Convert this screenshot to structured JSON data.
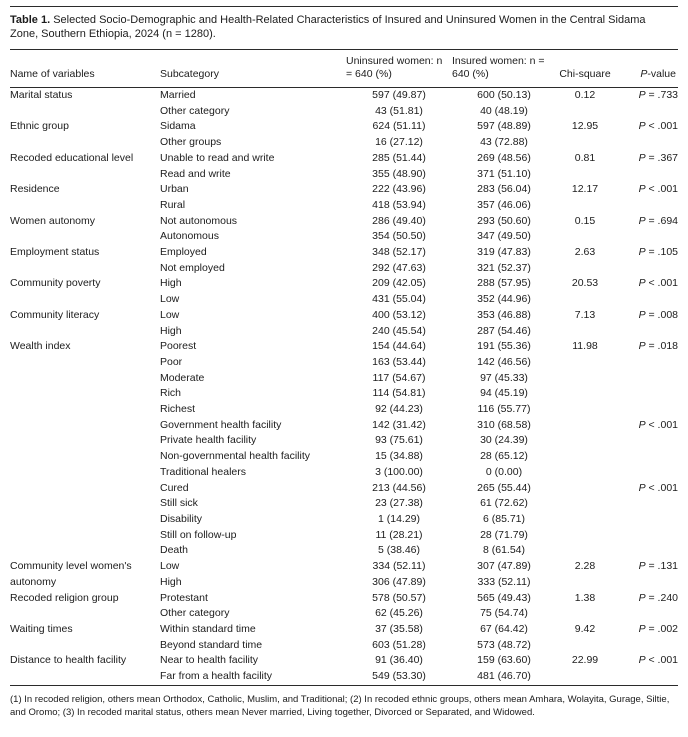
{
  "title": {
    "label": "Table 1.",
    "text": "  Selected Socio-Demographic and Health-Related Characteristics of Insured and Uninsured Women in the Central Sidama Zone, Southern Ethiopia, 2024 (n = 1280)."
  },
  "table": {
    "columns": [
      "Name of variables",
      "Subcategory",
      "Uninsured women: n = 640 (%)",
      "Insured women: n = 640 (%)",
      "Chi-square",
      "P-value"
    ],
    "rows": [
      {
        "variable": "Marital status",
        "subcategory": "Married",
        "uninsured": "597 (49.87)",
        "insured": "600 (50.13)",
        "chi": "0.12",
        "p": "P = .733"
      },
      {
        "variable": "",
        "subcategory": "Other category",
        "uninsured": "43 (51.81)",
        "insured": "40 (48.19)",
        "chi": "",
        "p": ""
      },
      {
        "variable": "Ethnic group",
        "subcategory": "Sidama",
        "uninsured": "624 (51.11)",
        "insured": "597 (48.89)",
        "chi": "12.95",
        "p": "P < .001"
      },
      {
        "variable": "",
        "subcategory": "Other groups",
        "uninsured": "16 (27.12)",
        "insured": "43 (72.88)",
        "chi": "",
        "p": ""
      },
      {
        "variable": "Recoded educational level",
        "subcategory": "Unable to read and write",
        "uninsured": "285 (51.44)",
        "insured": "269 (48.56)",
        "chi": "0.81",
        "p": "P = .367"
      },
      {
        "variable": "",
        "subcategory": "Read and write",
        "uninsured": "355 (48.90)",
        "insured": "371 (51.10)",
        "chi": "",
        "p": ""
      },
      {
        "variable": "Residence",
        "subcategory": "Urban",
        "uninsured": "222 (43.96)",
        "insured": "283 (56.04)",
        "chi": "12.17",
        "p": "P < .001"
      },
      {
        "variable": "",
        "subcategory": "Rural",
        "uninsured": "418 (53.94)",
        "insured": "357 (46.06)",
        "chi": "",
        "p": ""
      },
      {
        "variable": "Women autonomy",
        "subcategory": "Not autonomous",
        "uninsured": "286 (49.40)",
        "insured": "293 (50.60)",
        "chi": "0.15",
        "p": "P = .694"
      },
      {
        "variable": "",
        "subcategory": "Autonomous",
        "uninsured": "354 (50.50)",
        "insured": "347 (49.50)",
        "chi": "",
        "p": ""
      },
      {
        "variable": "Employment status",
        "subcategory": "Employed",
        "uninsured": "348 (52.17)",
        "insured": "319 (47.83)",
        "chi": "2.63",
        "p": "P = .105"
      },
      {
        "variable": "",
        "subcategory": "Not employed",
        "uninsured": "292 (47.63)",
        "insured": "321 (52.37)",
        "chi": "",
        "p": ""
      },
      {
        "variable": "Community poverty",
        "subcategory": "High",
        "uninsured": "209 (42.05)",
        "insured": "288 (57.95)",
        "chi": "20.53",
        "p": "P < .001"
      },
      {
        "variable": "",
        "subcategory": "Low",
        "uninsured": "431 (55.04)",
        "insured": "352 (44.96)",
        "chi": "",
        "p": ""
      },
      {
        "variable": "Community literacy",
        "subcategory": "Low",
        "uninsured": "400 (53.12)",
        "insured": "353 (46.88)",
        "chi": "7.13",
        "p": "P = .008"
      },
      {
        "variable": "",
        "subcategory": "High",
        "uninsured": "240 (45.54)",
        "insured": "287 (54.46)",
        "chi": "",
        "p": ""
      },
      {
        "variable": "Wealth index",
        "subcategory": "Poorest",
        "uninsured": "154 (44.64)",
        "insured": "191 (55.36)",
        "chi": "11.98",
        "p": "P = .018"
      },
      {
        "variable": "",
        "subcategory": "Poor",
        "uninsured": "163 (53.44)",
        "insured": "142 (46.56)",
        "chi": "",
        "p": ""
      },
      {
        "variable": "",
        "subcategory": "Moderate",
        "uninsured": "117 (54.67)",
        "insured": "97 (45.33)",
        "chi": "",
        "p": ""
      },
      {
        "variable": "",
        "subcategory": "Rich",
        "uninsured": "114 (54.81)",
        "insured": "94 (45.19)",
        "chi": "",
        "p": ""
      },
      {
        "variable": "",
        "subcategory": "Richest",
        "uninsured": "92 (44.23)",
        "insured": "116 (55.77)",
        "chi": "",
        "p": ""
      },
      {
        "variable": "",
        "subcategory": "Government health facility",
        "uninsured": "142 (31.42)",
        "insured": "310 (68.58)",
        "chi": "",
        "p": "P < .001"
      },
      {
        "variable": "",
        "subcategory": "Private health facility",
        "uninsured": "93 (75.61)",
        "insured": "30 (24.39)",
        "chi": "",
        "p": ""
      },
      {
        "variable": "",
        "subcategory": "Non-governmental health facility",
        "uninsured": "15 (34.88)",
        "insured": "28 (65.12)",
        "chi": "",
        "p": ""
      },
      {
        "variable": "",
        "subcategory": "Traditional healers",
        "uninsured": "3 (100.00)",
        "insured": "0 (0.00)",
        "chi": "",
        "p": ""
      },
      {
        "variable": "",
        "subcategory": "Cured",
        "uninsured": "213 (44.56)",
        "insured": "265 (55.44)",
        "chi": "",
        "p": "P < .001"
      },
      {
        "variable": "",
        "subcategory": "Still sick",
        "uninsured": "23 (27.38)",
        "insured": "61 (72.62)",
        "chi": "",
        "p": ""
      },
      {
        "variable": "",
        "subcategory": "Disability",
        "uninsured": "1 (14.29)",
        "insured": "6 (85.71)",
        "chi": "",
        "p": ""
      },
      {
        "variable": "",
        "subcategory": "Still on follow-up",
        "uninsured": "11 (28.21)",
        "insured": "28 (71.79)",
        "chi": "",
        "p": ""
      },
      {
        "variable": "",
        "subcategory": "Death",
        "uninsured": "5 (38.46)",
        "insured": "8 (61.54)",
        "chi": "",
        "p": ""
      },
      {
        "variable": "Community level women's",
        "subcategory": "Low",
        "uninsured": "334 (52.11)",
        "insured": "307 (47.89)",
        "chi": "2.28",
        "p": "P = .131"
      },
      {
        "variable": "autonomy",
        "subcategory": "High",
        "uninsured": "306 (47.89)",
        "insured": "333 (52.11)",
        "chi": "",
        "p": ""
      },
      {
        "variable": "Recoded religion group",
        "subcategory": "Protestant",
        "uninsured": "578 (50.57)",
        "insured": "565 (49.43)",
        "chi": "1.38",
        "p": "P = .240"
      },
      {
        "variable": "",
        "subcategory": "Other category",
        "uninsured": "62 (45.26)",
        "insured": "75 (54.74)",
        "chi": "",
        "p": ""
      },
      {
        "variable": "Waiting times",
        "subcategory": "Within standard time",
        "uninsured": "37 (35.58)",
        "insured": "67 (64.42)",
        "chi": "9.42",
        "p": "P = .002"
      },
      {
        "variable": "",
        "subcategory": "Beyond standard time",
        "uninsured": "603 (51.28)",
        "insured": "573 (48.72)",
        "chi": "",
        "p": ""
      },
      {
        "variable": "Distance to health facility",
        "subcategory": "Near to health facility",
        "uninsured": "91 (36.40)",
        "insured": "159 (63.60)",
        "chi": "22.99",
        "p": "P < .001"
      },
      {
        "variable": "",
        "subcategory": "Far from a health facility",
        "uninsured": "549 (53.30)",
        "insured": "481 (46.70)",
        "chi": "",
        "p": ""
      }
    ]
  },
  "footnote": "(1) In recoded religion, others mean Orthodox, Catholic, Muslim, and Traditional; (2) In recoded ethnic groups, others mean Amhara, Wolayita, Gurage, Siltie, and Oromo; (3) In recoded marital status, others mean Never married, Living together, Divorced or Separated, and Widowed."
}
